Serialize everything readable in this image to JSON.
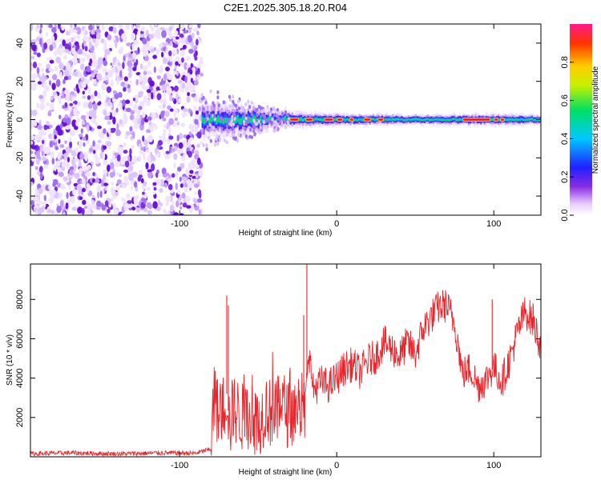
{
  "title": "C2E1.2025.305.18.20.R04",
  "chart_data": [
    {
      "type": "heatmap",
      "name": "spectrogram",
      "xlabel": "Height of straight line (km)",
      "ylabel": "Frequency (Hz)",
      "xlim": [
        -195,
        130
      ],
      "ylim": [
        -50,
        50
      ],
      "xticks": [
        -100,
        0,
        100
      ],
      "xtick_labels": [
        "-100",
        "0",
        "100"
      ],
      "yticks": [
        -40,
        -20,
        0,
        20,
        40
      ],
      "ytick_labels": [
        "-40",
        "-20",
        "0",
        "20",
        "40"
      ],
      "noise_region_km": [
        -195,
        -86
      ],
      "signal_onset_km": -86,
      "signal_center_hz": 0,
      "colorbar": {
        "label": "Normalized spectral amplitude",
        "range": [
          0,
          1
        ],
        "ticks": [
          0.0,
          0.2,
          0.4,
          0.6,
          0.8
        ],
        "tick_labels": [
          "0.0",
          "0.2",
          "0.4",
          "0.6",
          "0.8"
        ],
        "colormap": [
          "#ffffff",
          "#cc99ff",
          "#6a0dd8",
          "#2020ff",
          "#00c8ff",
          "#00e060",
          "#c8f000",
          "#ffcc00",
          "#ff3300",
          "#ff1a8c"
        ]
      }
    },
    {
      "type": "line",
      "name": "snr",
      "xlabel": "Height of straight line (km)",
      "ylabel": "SNR (10 * v/v)",
      "xlim": [
        -195,
        130
      ],
      "ylim": [
        0,
        9800
      ],
      "xticks": [
        -100,
        0,
        100
      ],
      "xtick_labels": [
        "-100",
        "0",
        "100"
      ],
      "yticks": [
        2000,
        4000,
        6000,
        8000
      ],
      "ytick_labels": [
        "2000",
        "4000",
        "6000",
        "8000"
      ],
      "color": "#e8262b",
      "x": [
        -195,
        -170,
        -140,
        -110,
        -90,
        -80,
        -78,
        -75,
        -72,
        -70,
        -68,
        -66,
        -60,
        -55,
        -50,
        -45,
        -40,
        -35,
        -30,
        -25,
        -20,
        -18,
        -15,
        -10,
        -5,
        0,
        5,
        10,
        15,
        20,
        25,
        30,
        35,
        40,
        45,
        50,
        55,
        60,
        65,
        70,
        75,
        78,
        80,
        85,
        90,
        95,
        100,
        105,
        110,
        115,
        120,
        125,
        130
      ],
      "y": [
        150,
        200,
        150,
        200,
        180,
        400,
        3000,
        2000,
        2600,
        3200,
        1500,
        2500,
        2000,
        2200,
        1600,
        2600,
        1900,
        2800,
        2000,
        2700,
        2400,
        5600,
        3400,
        3800,
        3600,
        4000,
        4500,
        4700,
        4300,
        4900,
        5100,
        5800,
        5500,
        5100,
        5800,
        5200,
        6500,
        7100,
        7600,
        7700,
        6800,
        5400,
        4200,
        4500,
        3600,
        3900,
        4600,
        3800,
        4900,
        6300,
        7400,
        6900,
        5600
      ],
      "spikes": [
        {
          "x": -70,
          "y": 8200
        },
        {
          "x": -69,
          "y": 7700
        },
        {
          "x": -19,
          "y": 9800
        },
        {
          "x": -21,
          "y": 7200
        },
        {
          "x": 99,
          "y": 8000
        },
        {
          "x": 125,
          "y": 7800
        }
      ]
    }
  ]
}
